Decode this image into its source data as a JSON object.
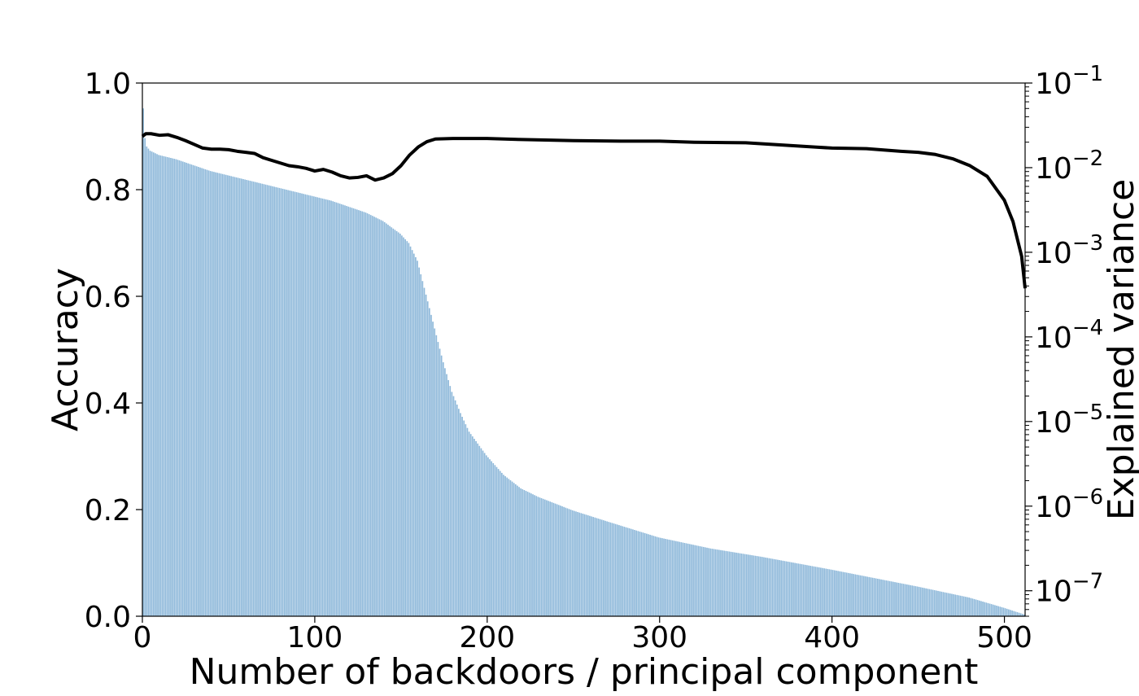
{
  "chart_data": {
    "type": "bar+line",
    "title": "",
    "xlabel": "Number of backdoors / principal component",
    "ylabel": "Accuracy",
    "y2label": "Explained variance",
    "xlim": [
      0,
      512
    ],
    "ylim": [
      0,
      1.0
    ],
    "y2lim": [
      5e-08,
      0.1
    ],
    "y2scale": "log",
    "grid": false,
    "legend": "none",
    "colors": {
      "bars": "#8fb9da",
      "line": "#000000"
    },
    "x_ticks": [
      0,
      100,
      200,
      300,
      400,
      500
    ],
    "x_tick_labels": [
      "0",
      "100",
      "200",
      "300",
      "400",
      "500"
    ],
    "y_ticks": [
      0.0,
      0.2,
      0.4,
      0.6,
      0.8,
      1.0
    ],
    "y_tick_labels": [
      "0.0",
      "0.2",
      "0.4",
      "0.6",
      "0.8",
      "1.0"
    ],
    "y2_ticks": [
      1e-07,
      1e-06,
      1e-05,
      0.0001,
      0.001,
      0.01,
      0.1
    ],
    "y2_tick_labels": [
      "10",
      "10",
      "10",
      "10",
      "10",
      "10",
      "10"
    ],
    "y2_tick_exponents": [
      "−7",
      "−6",
      "−5",
      "−4",
      "−3",
      "−2",
      "−1"
    ],
    "bars_series": {
      "name": "",
      "axis": "right",
      "n": 512,
      "x_start": 1,
      "values_log10_keypoints": [
        [
          1,
          -1.3
        ],
        [
          2,
          -1.65
        ],
        [
          3,
          -1.75
        ],
        [
          5,
          -1.8
        ],
        [
          10,
          -1.85
        ],
        [
          20,
          -1.9
        ],
        [
          30,
          -1.97
        ],
        [
          40,
          -2.04
        ],
        [
          50,
          -2.09
        ],
        [
          60,
          -2.14
        ],
        [
          70,
          -2.19
        ],
        [
          80,
          -2.24
        ],
        [
          90,
          -2.29
        ],
        [
          100,
          -2.34
        ],
        [
          110,
          -2.39
        ],
        [
          120,
          -2.46
        ],
        [
          130,
          -2.53
        ],
        [
          140,
          -2.63
        ],
        [
          150,
          -2.78
        ],
        [
          155,
          -2.89
        ],
        [
          160,
          -3.1
        ],
        [
          165,
          -3.5
        ],
        [
          170,
          -3.9
        ],
        [
          175,
          -4.3
        ],
        [
          180,
          -4.65
        ],
        [
          185,
          -4.9
        ],
        [
          190,
          -5.12
        ],
        [
          200,
          -5.4
        ],
        [
          210,
          -5.63
        ],
        [
          220,
          -5.79
        ],
        [
          230,
          -5.89
        ],
        [
          250,
          -6.05
        ],
        [
          270,
          -6.18
        ],
        [
          300,
          -6.37
        ],
        [
          330,
          -6.5
        ],
        [
          360,
          -6.6
        ],
        [
          400,
          -6.75
        ],
        [
          450,
          -6.95
        ],
        [
          480,
          -7.08
        ],
        [
          500,
          -7.2
        ],
        [
          512,
          -7.28
        ]
      ]
    },
    "line_series": {
      "name": "",
      "axis": "left",
      "points": [
        [
          0,
          0.9
        ],
        [
          2,
          0.905
        ],
        [
          5,
          0.905
        ],
        [
          10,
          0.902
        ],
        [
          15,
          0.903
        ],
        [
          20,
          0.898
        ],
        [
          25,
          0.892
        ],
        [
          30,
          0.885
        ],
        [
          35,
          0.878
        ],
        [
          40,
          0.876
        ],
        [
          45,
          0.876
        ],
        [
          50,
          0.875
        ],
        [
          55,
          0.872
        ],
        [
          60,
          0.87
        ],
        [
          65,
          0.868
        ],
        [
          70,
          0.86
        ],
        [
          75,
          0.855
        ],
        [
          80,
          0.85
        ],
        [
          85,
          0.845
        ],
        [
          90,
          0.843
        ],
        [
          95,
          0.84
        ],
        [
          100,
          0.835
        ],
        [
          105,
          0.838
        ],
        [
          110,
          0.833
        ],
        [
          115,
          0.826
        ],
        [
          120,
          0.822
        ],
        [
          125,
          0.823
        ],
        [
          130,
          0.826
        ],
        [
          135,
          0.818
        ],
        [
          140,
          0.822
        ],
        [
          145,
          0.83
        ],
        [
          150,
          0.845
        ],
        [
          155,
          0.865
        ],
        [
          160,
          0.88
        ],
        [
          165,
          0.89
        ],
        [
          170,
          0.895
        ],
        [
          180,
          0.896
        ],
        [
          200,
          0.896
        ],
        [
          220,
          0.894
        ],
        [
          250,
          0.892
        ],
        [
          280,
          0.891
        ],
        [
          300,
          0.891
        ],
        [
          320,
          0.889
        ],
        [
          350,
          0.888
        ],
        [
          370,
          0.884
        ],
        [
          390,
          0.88
        ],
        [
          400,
          0.878
        ],
        [
          420,
          0.877
        ],
        [
          440,
          0.872
        ],
        [
          450,
          0.87
        ],
        [
          460,
          0.866
        ],
        [
          470,
          0.858
        ],
        [
          480,
          0.845
        ],
        [
          490,
          0.825
        ],
        [
          500,
          0.78
        ],
        [
          505,
          0.74
        ],
        [
          510,
          0.675
        ],
        [
          512,
          0.615
        ]
      ]
    }
  }
}
